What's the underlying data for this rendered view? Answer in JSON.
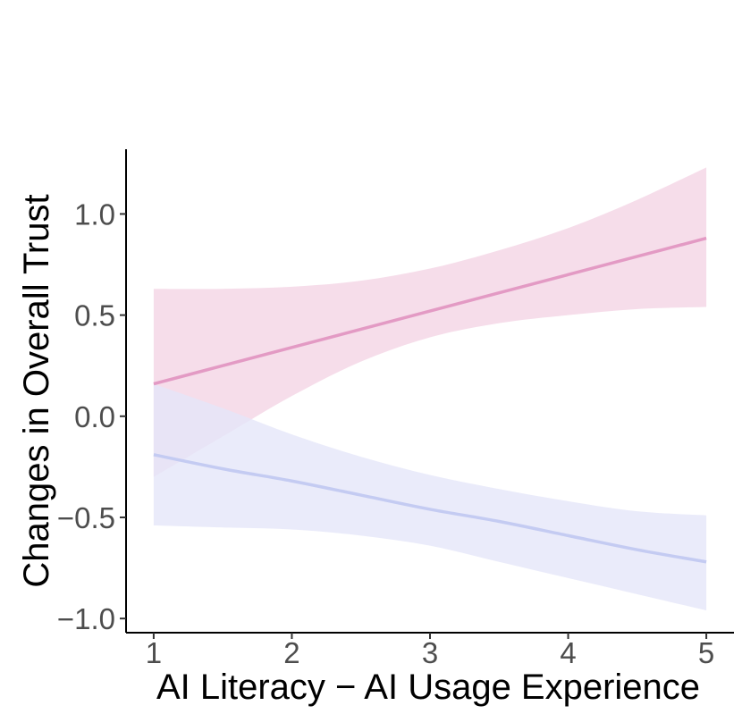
{
  "chart_data": {
    "type": "line",
    "title": "",
    "xlabel": "AI Literacy − AI Usage Experience",
    "ylabel": "Changes in Overall Trust",
    "xlim": [
      0.8,
      5.2
    ],
    "ylim": [
      -1.07,
      1.32
    ],
    "x_ticks": [
      1,
      2,
      3,
      4,
      5
    ],
    "x_tick_labels": [
      "1",
      "2",
      "3",
      "4",
      "5"
    ],
    "y_ticks": [
      1.0,
      0.5,
      0.0,
      -0.5,
      -1.0
    ],
    "y_tick_labels": [
      "1.0",
      "0.5",
      "0.0",
      "−0.5",
      "−1.0"
    ],
    "grid": false,
    "legend": "none",
    "series": [
      {
        "color": "#e39ac4",
        "band_color": "#f4d3e4",
        "x": [
          1,
          1.5,
          2,
          2.5,
          3,
          3.5,
          4,
          4.5,
          5
        ],
        "y": [
          0.16,
          0.25,
          0.34,
          0.43,
          0.52,
          0.61,
          0.7,
          0.79,
          0.88
        ],
        "lower": [
          -0.3,
          -0.1,
          0.1,
          0.27,
          0.39,
          0.46,
          0.5,
          0.53,
          0.54
        ],
        "upper": [
          0.63,
          0.63,
          0.64,
          0.67,
          0.73,
          0.82,
          0.93,
          1.07,
          1.23
        ]
      },
      {
        "color": "#c4cbf2",
        "band_color": "#e4e6f9",
        "x": [
          1,
          1.5,
          2,
          2.5,
          3,
          3.5,
          4,
          4.5,
          5
        ],
        "y": [
          -0.19,
          -0.26,
          -0.32,
          -0.39,
          -0.46,
          -0.52,
          -0.59,
          -0.66,
          -0.72
        ],
        "lower": [
          -0.54,
          -0.55,
          -0.56,
          -0.59,
          -0.64,
          -0.72,
          -0.8,
          -0.88,
          -0.96
        ],
        "upper": [
          0.16,
          0.04,
          -0.09,
          -0.2,
          -0.29,
          -0.36,
          -0.42,
          -0.47,
          -0.49
        ]
      }
    ]
  }
}
